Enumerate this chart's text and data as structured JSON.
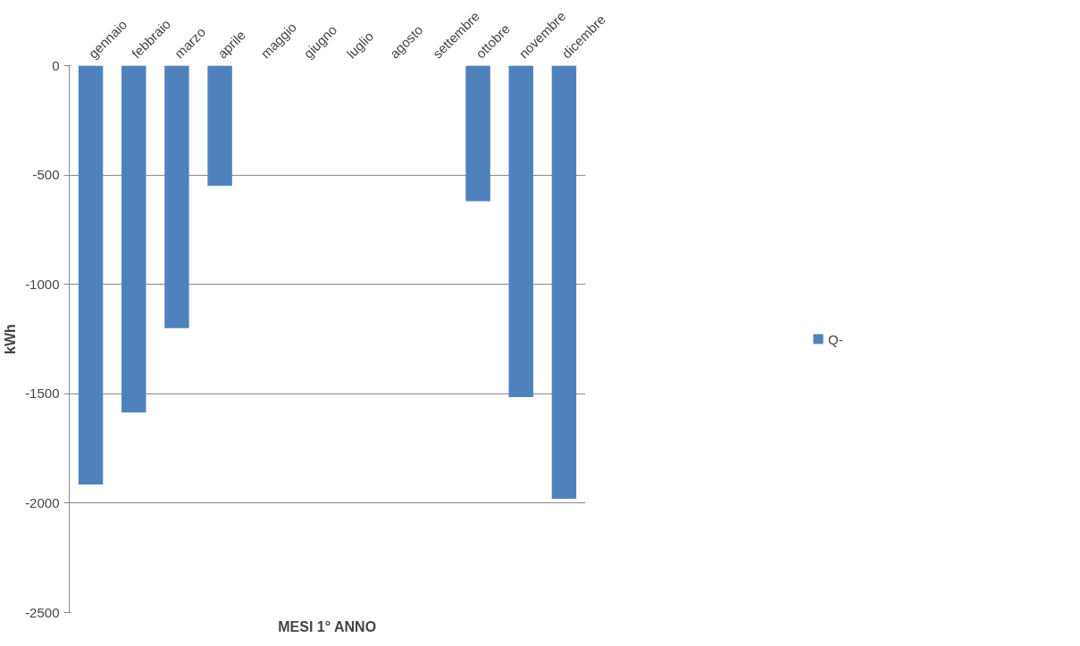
{
  "chart_data": {
    "type": "bar",
    "xlabel": "MESI 1° ANNO",
    "ylabel": "kWh",
    "categories": [
      "gennaio",
      "febbraio",
      "marzo",
      "aprile",
      "maggio",
      "giugno",
      "luglio",
      "agosto",
      "settembre",
      "ottobre",
      "novembre",
      "dicembre"
    ],
    "series": [
      {
        "name": "Q-",
        "color": "#4f81bd",
        "values": [
          -1915,
          -1585,
          -1200,
          -550,
          null,
          null,
          null,
          null,
          null,
          -620,
          -1515,
          -1980
        ]
      }
    ],
    "ylim": [
      -2500,
      0
    ],
    "yticks": [
      0,
      -500,
      -1000,
      -1500,
      -2000,
      -2500
    ],
    "grid": "y",
    "legend": "right"
  }
}
